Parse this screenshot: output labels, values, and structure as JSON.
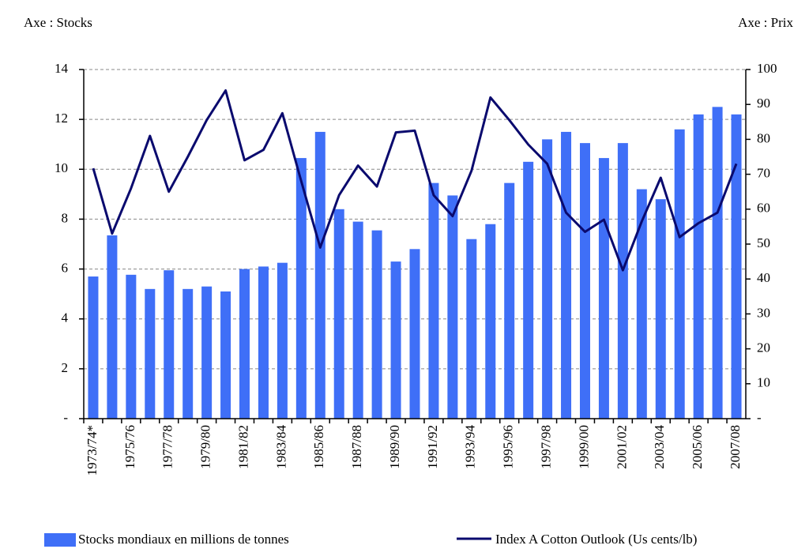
{
  "chart_data": {
    "type": "bar-line",
    "y_title": "Axe : Stocks",
    "y2_title": "Axe : Prix",
    "categories": [
      "1973/74*",
      null,
      "1975/76",
      null,
      "1977/78",
      null,
      "1979/80",
      null,
      "1981/82",
      null,
      "1983/84",
      null,
      "1985/86",
      null,
      "1987/88",
      null,
      "1989/90",
      null,
      "1991/92",
      null,
      "1993/94",
      null,
      "1995/96",
      null,
      "1997/98",
      null,
      "1999/00",
      null,
      "2001/02",
      null,
      "2003/04",
      null,
      "2005/06",
      null,
      "2007/08"
    ],
    "series": [
      {
        "name": "Stocks mondiaux en millions de tonnes",
        "type": "bar",
        "color": "#3f6ff7",
        "values": [
          5.7,
          7.35,
          5.77,
          5.2,
          5.95,
          5.2,
          5.3,
          5.1,
          6.0,
          6.1,
          6.25,
          10.45,
          11.5,
          8.4,
          7.9,
          7.55,
          6.3,
          6.8,
          9.45,
          8.95,
          7.2,
          7.8,
          9.45,
          10.3,
          11.2,
          11.5,
          11.05,
          10.45,
          11.05,
          9.2,
          8.8,
          11.6,
          12.2,
          12.5,
          12.2
        ]
      },
      {
        "name": "Index A Cotton Outlook (Us cents/lb)",
        "type": "line",
        "axis": "y2",
        "color": "#0a0a6e",
        "values": [
          71.7,
          53,
          66,
          81,
          65,
          75,
          85.5,
          94,
          74,
          77,
          87.5,
          68,
          49,
          64,
          72.5,
          66.5,
          82,
          82.5,
          64,
          58,
          71,
          92,
          85.5,
          78.5,
          73,
          59,
          53.5,
          57,
          42.5,
          56.5,
          69,
          52,
          56,
          59,
          73
        ]
      }
    ],
    "ylim": [
      0,
      14
    ],
    "yticks": [
      {
        "value": 0,
        "label": "-"
      },
      2,
      4,
      6,
      8,
      10,
      12,
      14
    ],
    "y2lim": [
      0,
      100
    ],
    "y2ticks": [
      {
        "value": 0,
        "label": "-"
      },
      10,
      20,
      30,
      40,
      50,
      60,
      70,
      80,
      90,
      100
    ],
    "grid": true,
    "legend": "bottom"
  }
}
